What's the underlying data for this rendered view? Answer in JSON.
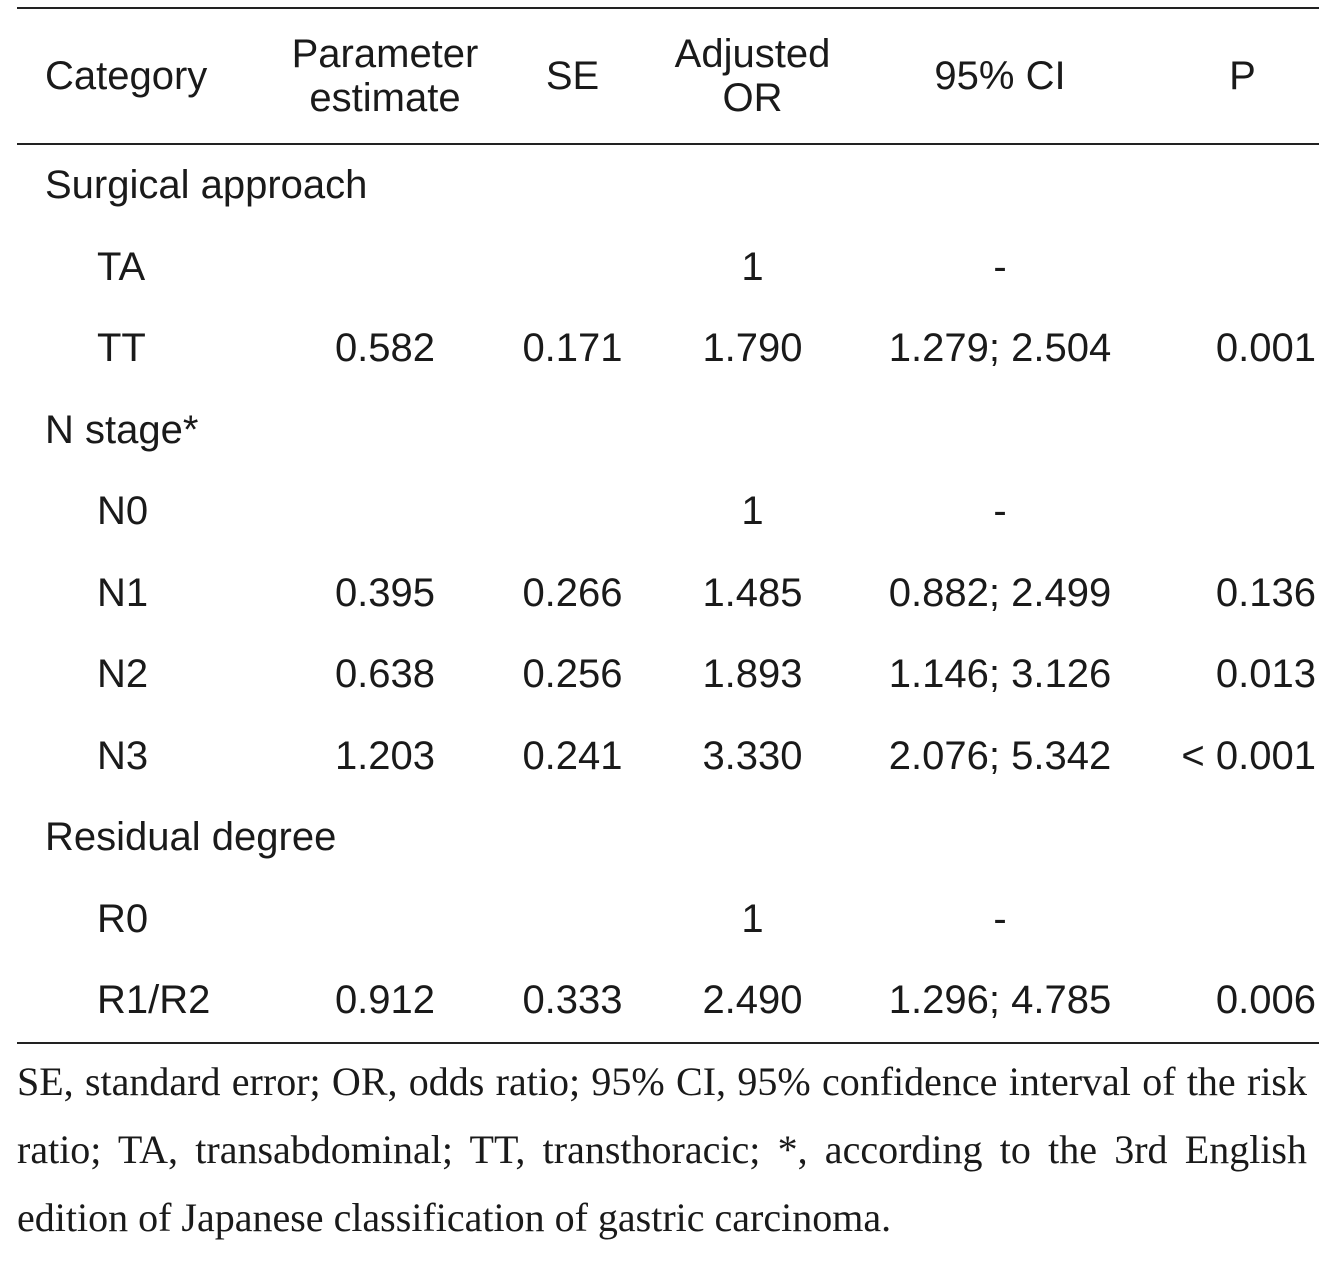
{
  "table": {
    "headers": {
      "category": "Category",
      "estimate_line1": "Parameter",
      "estimate_line2": "estimate",
      "se": "SE",
      "or_line1": "Adjusted",
      "or_line2": "OR",
      "ci": "95% CI",
      "p": "P"
    },
    "groups": [
      {
        "label": "Surgical approach",
        "rows": [
          {
            "name": "TA",
            "estimate": "",
            "se": "",
            "or": "1",
            "ci": "-",
            "p": ""
          },
          {
            "name": "TT",
            "estimate": "0.582",
            "se": "0.171",
            "or": "1.790",
            "ci": "1.279; 2.504",
            "p": "0.001"
          }
        ]
      },
      {
        "label": "N stage*",
        "rows": [
          {
            "name": "N0",
            "estimate": "",
            "se": "",
            "or": "1",
            "ci": "-",
            "p": ""
          },
          {
            "name": "N1",
            "estimate": "0.395",
            "se": "0.266",
            "or": "1.485",
            "ci": "0.882; 2.499",
            "p": "0.136"
          },
          {
            "name": "N2",
            "estimate": "0.638",
            "se": "0.256",
            "or": "1.893",
            "ci": "1.146; 3.126",
            "p": "0.013"
          },
          {
            "name": "N3",
            "estimate": "1.203",
            "se": "0.241",
            "or": "3.330",
            "ci": "2.076; 5.342",
            "p": "< 0.001"
          }
        ]
      },
      {
        "label": "Residual degree",
        "rows": [
          {
            "name": "R0",
            "estimate": "",
            "se": "",
            "or": "1",
            "ci": "-",
            "p": ""
          },
          {
            "name": "R1/R2",
            "estimate": "0.912",
            "se": "0.333",
            "or": "2.490",
            "ci": "1.296; 4.785",
            "p": "0.006"
          }
        ]
      }
    ]
  },
  "footnote": "SE, standard error; OR, odds ratio; 95% CI, 95% confidence interval of the risk ratio; TA, transabdominal; TT, transthoracic; *, according to the 3rd English edition of Japanese classification of gastric carcinoma."
}
